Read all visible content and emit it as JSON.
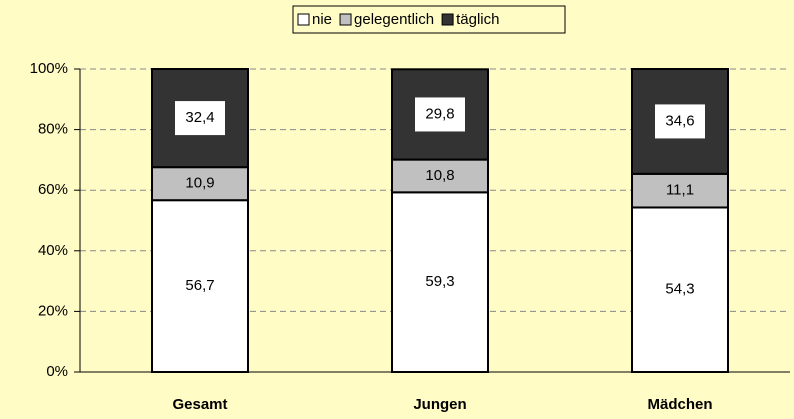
{
  "chart_data": {
    "type": "stacked_bar",
    "categories": [
      "Gesamt",
      "Jungen",
      "Mädchen"
    ],
    "series": [
      {
        "name": "nie",
        "color": "#ffffff",
        "values": [
          56.7,
          59.3,
          54.3
        ],
        "value_labels": [
          "56,7",
          "59,3",
          "54,3"
        ]
      },
      {
        "name": "gelegentlich",
        "color": "#c0c0c0",
        "values": [
          10.9,
          10.8,
          11.1
        ],
        "value_labels": [
          "10,9",
          "10,8",
          "11,1"
        ]
      },
      {
        "name": "täglich",
        "color": "#333333",
        "values": [
          32.4,
          29.8,
          34.6
        ],
        "value_labels": [
          "32,4",
          "29,8",
          "34,6"
        ]
      }
    ],
    "ylim": [
      0,
      100
    ],
    "yticks": [
      {
        "value": 0,
        "label": "0%"
      },
      {
        "value": 20,
        "label": "20%"
      },
      {
        "value": 40,
        "label": "40%"
      },
      {
        "value": 60,
        "label": "60%"
      },
      {
        "value": 80,
        "label": "80%"
      },
      {
        "value": 100,
        "label": "100%"
      }
    ],
    "grid": true,
    "legend": "top"
  }
}
